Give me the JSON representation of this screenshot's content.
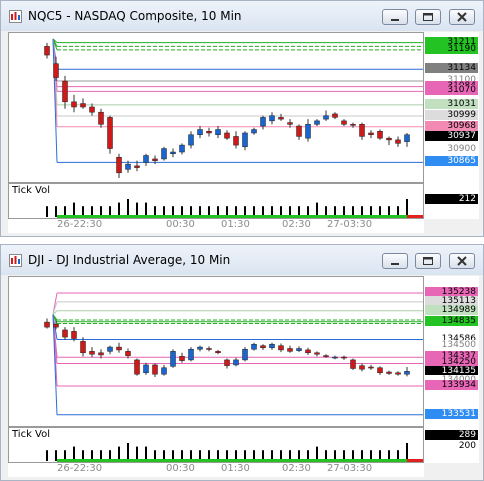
{
  "windows": [
    {
      "title": "NQC5 - NASDAQ Composite, 10 Min",
      "price_labels": [
        {
          "text": "31211",
          "bg": "#22c322",
          "fg": "#000000"
        },
        {
          "text": "31190",
          "bg": "#22c322",
          "fg": "#000000"
        },
        {
          "text": "31134",
          "bg": "#808080",
          "fg": "#000000"
        },
        {
          "text": "31100",
          "bg": "#ffffff",
          "fg": "#808080"
        },
        {
          "text": "31084",
          "bg": "#e866b6",
          "fg": "#000000"
        },
        {
          "text": "31070",
          "bg": "#e866b6",
          "fg": "#000000"
        },
        {
          "text": "31031",
          "bg": "#c0e0c0",
          "fg": "#000000"
        },
        {
          "text": "30999",
          "bg": "#dcdcdc",
          "fg": "#000000"
        },
        {
          "text": "30968",
          "bg": "#f38ab4",
          "fg": "#000000"
        },
        {
          "text": "30937",
          "bg": "#000000",
          "fg": "#ffffff"
        },
        {
          "text": "30900",
          "bg": "#ffffff",
          "fg": "#808080"
        },
        {
          "text": "30865",
          "bg": "#2f8cf2",
          "fg": "#ffffff"
        }
      ],
      "volume_label": "Tick Vol",
      "volume_value": "212",
      "volume_scale": "",
      "time_labels": [
        "26-22:30",
        "00:30",
        "01:30",
        "02:30",
        "27-03:30"
      ],
      "chart_data": {
        "type": "candlestick",
        "ylim": [
          30820,
          31230
        ],
        "up_color": "#1a66d0",
        "down_color": "#d01a1a",
        "levels": [
          {
            "y": 31211,
            "color": "#22b022",
            "dashed": false
          },
          {
            "y": 31200,
            "color": "#22b022",
            "dashed": true
          },
          {
            "y": 31190,
            "color": "#22b022",
            "dashed": true
          },
          {
            "y": 31134,
            "color": "#2a6ed8",
            "dashed": false
          },
          {
            "y": 31100,
            "color": "#9a9a9a",
            "dashed": false
          },
          {
            "y": 31084,
            "color": "#e866b6",
            "dashed": false
          },
          {
            "y": 31070,
            "color": "#e866b6",
            "dashed": false
          },
          {
            "y": 31031,
            "color": "#a8cfa8",
            "dashed": false
          },
          {
            "y": 30999,
            "color": "#c8c8c8",
            "dashed": false
          },
          {
            "y": 30968,
            "color": "#f38ab4",
            "dashed": false
          },
          {
            "y": 30865,
            "color": "#2a6ed8",
            "dashed": false
          }
        ],
        "candles": [
          {
            "o": 31200,
            "c": 31175,
            "h": 31210,
            "l": 31165
          },
          {
            "o": 31150,
            "c": 31110,
            "h": 31170,
            "l": 31100
          },
          {
            "o": 31100,
            "c": 31040,
            "h": 31115,
            "l": 31020
          },
          {
            "o": 31040,
            "c": 31025,
            "h": 31060,
            "l": 31010
          },
          {
            "o": 31035,
            "c": 31025,
            "h": 31050,
            "l": 31020
          },
          {
            "o": 31025,
            "c": 31010,
            "h": 31035,
            "l": 31000
          },
          {
            "o": 31010,
            "c": 30975,
            "h": 31020,
            "l": 30965
          },
          {
            "o": 30995,
            "c": 30905,
            "h": 31000,
            "l": 30890
          },
          {
            "o": 30880,
            "c": 30835,
            "h": 30890,
            "l": 30820
          },
          {
            "o": 30845,
            "c": 30860,
            "h": 30870,
            "l": 30835
          },
          {
            "o": 30855,
            "c": 30850,
            "h": 30870,
            "l": 30840
          },
          {
            "o": 30865,
            "c": 30885,
            "h": 30890,
            "l": 30855
          },
          {
            "o": 30875,
            "c": 30870,
            "h": 30885,
            "l": 30860
          },
          {
            "o": 30875,
            "c": 30905,
            "h": 30910,
            "l": 30870
          },
          {
            "o": 30890,
            "c": 30895,
            "h": 30905,
            "l": 30880
          },
          {
            "o": 30895,
            "c": 30915,
            "h": 30920,
            "l": 30888
          },
          {
            "o": 30915,
            "c": 30945,
            "h": 30955,
            "l": 30905
          },
          {
            "o": 30945,
            "c": 30960,
            "h": 30970,
            "l": 30935
          },
          {
            "o": 30955,
            "c": 30950,
            "h": 30965,
            "l": 30940
          },
          {
            "o": 30945,
            "c": 30960,
            "h": 30970,
            "l": 30935
          },
          {
            "o": 30950,
            "c": 30935,
            "h": 30958,
            "l": 30930
          },
          {
            "o": 30940,
            "c": 30915,
            "h": 30955,
            "l": 30905
          },
          {
            "o": 30910,
            "c": 30950,
            "h": 30955,
            "l": 30900
          },
          {
            "o": 30950,
            "c": 30960,
            "h": 30965,
            "l": 30945
          },
          {
            "o": 30970,
            "c": 30995,
            "h": 31000,
            "l": 30960
          },
          {
            "o": 30985,
            "c": 31000,
            "h": 31010,
            "l": 30975
          },
          {
            "o": 30995,
            "c": 30990,
            "h": 31005,
            "l": 30985
          },
          {
            "o": 30980,
            "c": 30975,
            "h": 30990,
            "l": 30965
          },
          {
            "o": 30970,
            "c": 30940,
            "h": 30975,
            "l": 30930
          },
          {
            "o": 30935,
            "c": 30975,
            "h": 30990,
            "l": 30925
          },
          {
            "o": 30975,
            "c": 30985,
            "h": 30990,
            "l": 30970
          },
          {
            "o": 30990,
            "c": 31000,
            "h": 31015,
            "l": 30985
          },
          {
            "o": 31005,
            "c": 30995,
            "h": 31010,
            "l": 30990
          },
          {
            "o": 30985,
            "c": 30975,
            "h": 30990,
            "l": 30970
          },
          {
            "o": 30975,
            "c": 30972,
            "h": 30980,
            "l": 30965
          },
          {
            "o": 30975,
            "c": 30940,
            "h": 30980,
            "l": 30930
          },
          {
            "o": 30950,
            "c": 30945,
            "h": 30958,
            "l": 30935
          },
          {
            "o": 30955,
            "c": 30935,
            "h": 30960,
            "l": 30930
          },
          {
            "o": 30935,
            "c": 30930,
            "h": 30940,
            "l": 30915
          },
          {
            "o": 30930,
            "c": 30920,
            "h": 30940,
            "l": 30910
          },
          {
            "o": 30925,
            "c": 30945,
            "h": 30950,
            "l": 30910
          }
        ],
        "volume": [
          3,
          3,
          3,
          4,
          3,
          3,
          3,
          3,
          4,
          5,
          4,
          4,
          3,
          3,
          3,
          3,
          3,
          3,
          3,
          3,
          3,
          3,
          3,
          3,
          3,
          3,
          3,
          3,
          3,
          3,
          4,
          3,
          3,
          3,
          3,
          3,
          3,
          3,
          3,
          3,
          5
        ]
      }
    },
    {
      "title": "DJI - DJ Industrial Average, 10 Min",
      "price_labels": [
        {
          "text": "135238",
          "bg": "#e866b6",
          "fg": "#000000"
        },
        {
          "text": "135113",
          "bg": "#dcdcdc",
          "fg": "#000000"
        },
        {
          "text": "134989",
          "bg": "#c0e0c0",
          "fg": "#000000"
        },
        {
          "text": "134835",
          "bg": "#22c322",
          "fg": "#000000"
        },
        {
          "text": "134586",
          "bg": "#ffffff",
          "fg": "#000000"
        },
        {
          "text": "134500",
          "bg": "#ffffff",
          "fg": "#808080"
        },
        {
          "text": "134337",
          "bg": "#e866b6",
          "fg": "#000000"
        },
        {
          "text": "134250",
          "bg": "#e866b6",
          "fg": "#000000"
        },
        {
          "text": "134135",
          "bg": "#000000",
          "fg": "#ffffff"
        },
        {
          "text": "134000",
          "bg": "#ffffff",
          "fg": "#808080"
        },
        {
          "text": "133934",
          "bg": "#e866b6",
          "fg": "#000000"
        },
        {
          "text": "133531",
          "bg": "#2f8cf2",
          "fg": "#ffffff"
        }
      ],
      "volume_label": "Tick Vol",
      "volume_value": "289",
      "volume_scale": "200",
      "time_labels": [
        "26-22:30",
        "00:30",
        "01:30",
        "02:30",
        "27-03:30"
      ],
      "chart_data": {
        "type": "candlestick",
        "ylim": [
          133430,
          135420
        ],
        "up_color": "#1a66d0",
        "down_color": "#d01a1a",
        "levels": [
          {
            "y": 135238,
            "color": "#e866b6",
            "dashed": false
          },
          {
            "y": 135113,
            "color": "#c8c8c8",
            "dashed": false
          },
          {
            "y": 134989,
            "color": "#a8cfa8",
            "dashed": false
          },
          {
            "y": 134860,
            "color": "#22b022",
            "dashed": true
          },
          {
            "y": 134835,
            "color": "#22b022",
            "dashed": false
          },
          {
            "y": 134810,
            "color": "#22b022",
            "dashed": true
          },
          {
            "y": 134586,
            "color": "#2a6ed8",
            "dashed": false
          },
          {
            "y": 134337,
            "color": "#e866b6",
            "dashed": false
          },
          {
            "y": 134250,
            "color": "#e866b6",
            "dashed": false
          },
          {
            "y": 133934,
            "color": "#e866b6",
            "dashed": false
          },
          {
            "y": 133531,
            "color": "#2a6ed8",
            "dashed": false
          }
        ],
        "candles": [
          {
            "o": 134830,
            "c": 134760,
            "h": 134880,
            "l": 134740
          },
          {
            "o": 134800,
            "c": 134760,
            "h": 134850,
            "l": 134730
          },
          {
            "o": 134720,
            "c": 134620,
            "h": 134760,
            "l": 134580
          },
          {
            "o": 134700,
            "c": 134600,
            "h": 134760,
            "l": 134560
          },
          {
            "o": 134560,
            "c": 134400,
            "h": 134620,
            "l": 134350
          },
          {
            "o": 134420,
            "c": 134380,
            "h": 134480,
            "l": 134340
          },
          {
            "o": 134400,
            "c": 134370,
            "h": 134450,
            "l": 134320
          },
          {
            "o": 134420,
            "c": 134480,
            "h": 134500,
            "l": 134380
          },
          {
            "o": 134480,
            "c": 134440,
            "h": 134540,
            "l": 134400
          },
          {
            "o": 134420,
            "c": 134360,
            "h": 134460,
            "l": 134320
          },
          {
            "o": 134300,
            "c": 134100,
            "h": 134320,
            "l": 134080
          },
          {
            "o": 134120,
            "c": 134230,
            "h": 134260,
            "l": 134090
          },
          {
            "o": 134230,
            "c": 134100,
            "h": 134250,
            "l": 134060
          },
          {
            "o": 134100,
            "c": 134190,
            "h": 134230,
            "l": 134080
          },
          {
            "o": 134210,
            "c": 134420,
            "h": 134450,
            "l": 134190
          },
          {
            "o": 134350,
            "c": 134290,
            "h": 134400,
            "l": 134260
          },
          {
            "o": 134300,
            "c": 134450,
            "h": 134480,
            "l": 134280
          },
          {
            "o": 134450,
            "c": 134480,
            "h": 134500,
            "l": 134420
          },
          {
            "o": 134460,
            "c": 134450,
            "h": 134490,
            "l": 134420
          },
          {
            "o": 134420,
            "c": 134400,
            "h": 134440,
            "l": 134380
          },
          {
            "o": 134300,
            "c": 134220,
            "h": 134320,
            "l": 134180
          },
          {
            "o": 134230,
            "c": 134300,
            "h": 134330,
            "l": 134210
          },
          {
            "o": 134300,
            "c": 134450,
            "h": 134480,
            "l": 134280
          },
          {
            "o": 134450,
            "c": 134520,
            "h": 134540,
            "l": 134430
          },
          {
            "o": 134500,
            "c": 134470,
            "h": 134520,
            "l": 134440
          },
          {
            "o": 134470,
            "c": 134520,
            "h": 134540,
            "l": 134440
          },
          {
            "o": 134500,
            "c": 134440,
            "h": 134530,
            "l": 134410
          },
          {
            "o": 134460,
            "c": 134420,
            "h": 134500,
            "l": 134400
          },
          {
            "o": 134430,
            "c": 134460,
            "h": 134490,
            "l": 134410
          },
          {
            "o": 134440,
            "c": 134400,
            "h": 134470,
            "l": 134370
          },
          {
            "o": 134400,
            "c": 134380,
            "h": 134420,
            "l": 134350
          },
          {
            "o": 134360,
            "c": 134350,
            "h": 134380,
            "l": 134330
          },
          {
            "o": 134330,
            "c": 134340,
            "h": 134360,
            "l": 134310
          },
          {
            "o": 134340,
            "c": 134330,
            "h": 134360,
            "l": 134300
          },
          {
            "o": 134300,
            "c": 134180,
            "h": 134320,
            "l": 134160
          },
          {
            "o": 134220,
            "c": 134170,
            "h": 134250,
            "l": 134140
          },
          {
            "o": 134200,
            "c": 134190,
            "h": 134230,
            "l": 134160
          },
          {
            "o": 134190,
            "c": 134120,
            "h": 134210,
            "l": 134090
          },
          {
            "o": 134130,
            "c": 134110,
            "h": 134150,
            "l": 134090
          },
          {
            "o": 134120,
            "c": 134100,
            "h": 134140,
            "l": 134080
          },
          {
            "o": 134100,
            "c": 134140,
            "h": 134200,
            "l": 134070
          }
        ],
        "volume": [
          3,
          3,
          3,
          4,
          3,
          3,
          3,
          3,
          4,
          5,
          4,
          4,
          3,
          3,
          3,
          3,
          3,
          3,
          3,
          3,
          3,
          3,
          3,
          3,
          3,
          3,
          3,
          3,
          3,
          3,
          4,
          3,
          3,
          3,
          3,
          3,
          3,
          3,
          3,
          3,
          5
        ]
      }
    }
  ]
}
